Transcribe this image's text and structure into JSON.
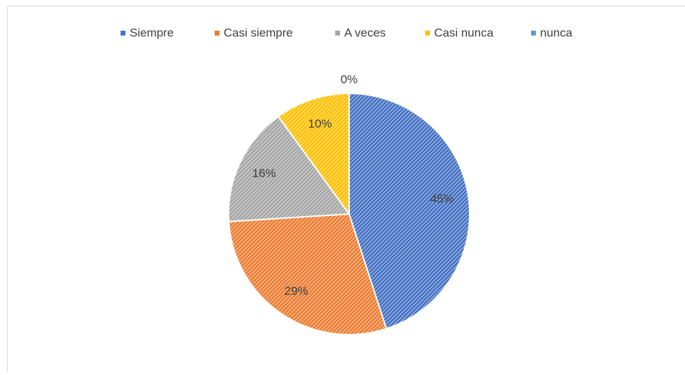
{
  "chart_data": {
    "type": "pie",
    "categories": [
      "Siempre",
      "Casi siempre",
      "A veces",
      "Casi nunca",
      "nunca"
    ],
    "values": [
      45,
      29,
      16,
      10,
      0
    ],
    "value_labels": [
      "45%",
      "29%",
      "16%",
      "10%",
      "0%"
    ],
    "colors": [
      "#4472c4",
      "#ed7d31",
      "#a5a5a5",
      "#ffc000",
      "#5b9bd5"
    ],
    "legend": "top"
  }
}
